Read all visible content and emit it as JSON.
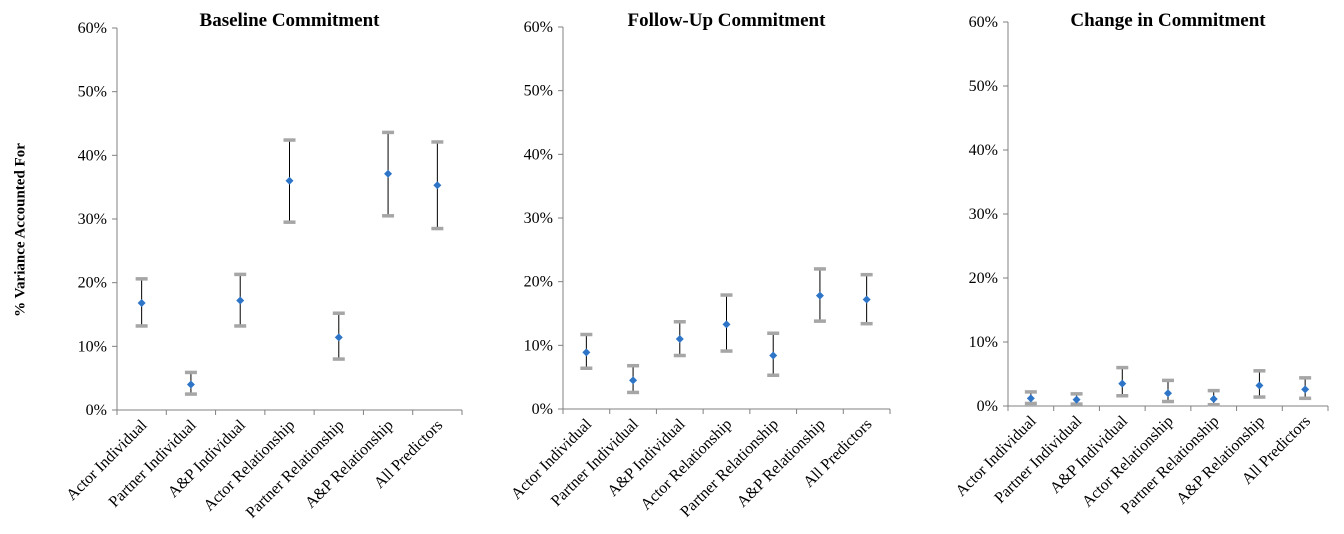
{
  "y_axis_label": "% Variance Accounted For",
  "colors": {
    "point": "#2e75c8",
    "error_bar": "#000000",
    "error_cap": "#a6a6a6",
    "axis": "#808080"
  },
  "chart_data": [
    {
      "type": "scatter",
      "title": "Baseline Commitment",
      "categories": [
        "Actor Individual",
        "Partner Individual",
        "A&P Individual",
        "Actor Relationship",
        "Partner Relationship",
        "A&P Relationship",
        "All Predictors"
      ],
      "series": [
        {
          "values": [
            16.8,
            4.0,
            17.2,
            36.0,
            11.4,
            37.1,
            35.3
          ],
          "lower": [
            13.2,
            2.5,
            13.2,
            29.5,
            8.0,
            30.5,
            28.5
          ],
          "upper": [
            20.6,
            5.9,
            21.3,
            42.4,
            15.2,
            43.6,
            42.1
          ]
        }
      ],
      "ylim": [
        0,
        60
      ],
      "yticks": [
        "0%",
        "10%",
        "20%",
        "30%",
        "40%",
        "50%",
        "60%"
      ],
      "grid": false,
      "legend": false
    },
    {
      "type": "scatter",
      "title": "Follow-Up Commitment",
      "categories": [
        "Actor Individual",
        "Partner Individual",
        "A&P Individual",
        "Actor Relationship",
        "Partner Relationship",
        "A&P Relationship",
        "All Predictors"
      ],
      "series": [
        {
          "values": [
            8.9,
            4.5,
            11.0,
            13.3,
            8.4,
            17.8,
            17.2
          ],
          "lower": [
            6.4,
            2.6,
            8.4,
            9.1,
            5.3,
            13.8,
            13.4
          ],
          "upper": [
            11.7,
            6.8,
            13.7,
            17.9,
            11.9,
            22.0,
            21.1
          ]
        }
      ],
      "ylim": [
        0,
        60
      ],
      "yticks": [
        "0%",
        "10%",
        "20%",
        "30%",
        "40%",
        "50%",
        "60%"
      ],
      "grid": false,
      "legend": false
    },
    {
      "type": "scatter",
      "title": "Change in Commitment",
      "categories": [
        "Actor Individual",
        "Partner Individual",
        "A&P Individual",
        "Actor Relationship",
        "Partner Relationship",
        "A&P Relationship",
        "All Predictors"
      ],
      "series": [
        {
          "values": [
            1.2,
            1.0,
            3.5,
            2.0,
            1.1,
            3.2,
            2.6
          ],
          "lower": [
            0.4,
            0.3,
            1.6,
            0.7,
            0.2,
            1.4,
            1.2
          ],
          "upper": [
            2.2,
            1.9,
            6.0,
            4.0,
            2.4,
            5.5,
            4.4
          ]
        }
      ],
      "ylim": [
        0,
        60
      ],
      "yticks": [
        "0%",
        "10%",
        "20%",
        "30%",
        "40%",
        "50%",
        "60%"
      ],
      "grid": false,
      "legend": false
    }
  ]
}
